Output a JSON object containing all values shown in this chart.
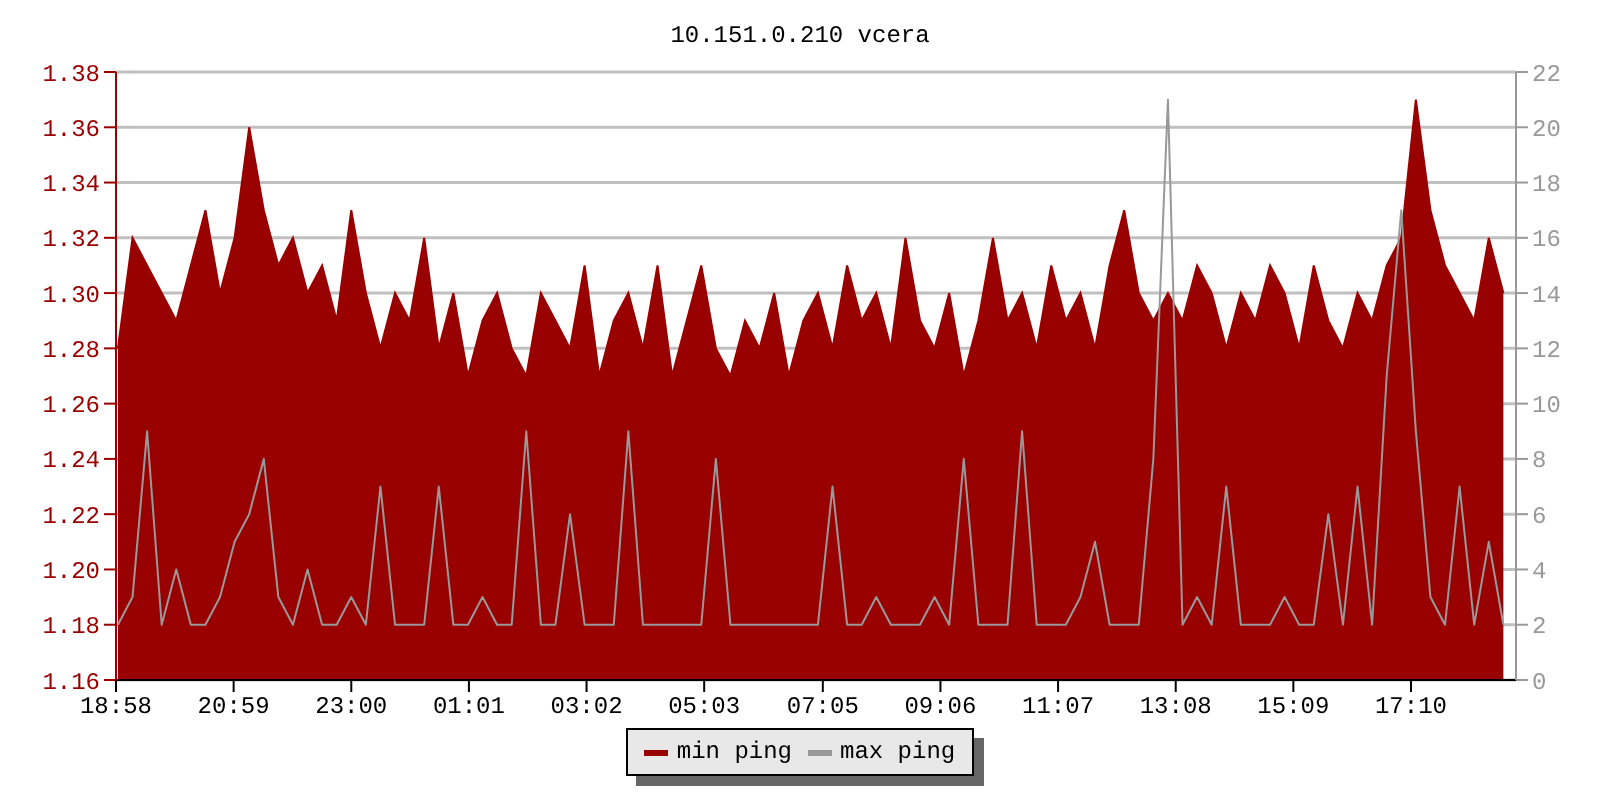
{
  "chart_data": {
    "type": "area",
    "title": "10.151.0.210 vcera",
    "x": [
      "--01-01T19:00",
      "--01-01T19:15",
      "--01-01T19:30",
      "--01-01T19:45",
      "--01-01T20:00",
      "--01-01T20:15",
      "--01-01T20:30",
      "--01-01T20:45",
      "--01-01T21:00",
      "--01-01T21:15",
      "--01-01T21:30",
      "--01-01T21:45",
      "--01-01T22:00",
      "--01-01T22:15",
      "--01-01T22:30",
      "--01-01T22:45",
      "--01-01T23:00",
      "--01-01T23:15",
      "--01-01T23:30",
      "--01-01T23:45",
      "--01-02T00:00",
      "--01-02T00:15",
      "--01-02T00:30",
      "--01-02T00:45",
      "--01-02T01:00",
      "--01-02T01:15",
      "--01-02T01:30",
      "--01-02T01:45",
      "--01-02T02:00",
      "--01-02T02:15",
      "--01-02T02:30",
      "--01-02T02:45",
      "--01-02T03:00",
      "--01-02T03:15",
      "--01-02T03:30",
      "--01-02T03:45",
      "--01-02T04:00",
      "--01-02T04:15",
      "--01-02T04:30",
      "--01-02T04:45",
      "--01-02T05:00",
      "--01-02T05:15",
      "--01-02T05:30",
      "--01-02T05:45",
      "--01-02T06:00",
      "--01-02T06:15",
      "--01-02T06:30",
      "--01-02T06:45",
      "--01-02T07:00",
      "--01-02T07:15",
      "--01-02T07:30",
      "--01-02T07:45",
      "--01-02T08:00",
      "--01-02T08:15",
      "--01-02T08:30",
      "--01-02T08:45",
      "--01-02T09:00",
      "--01-02T09:15",
      "--01-02T09:30",
      "--01-02T09:45",
      "--01-02T10:00",
      "--01-02T10:15",
      "--01-02T10:30",
      "--01-02T10:45",
      "--01-02T11:00",
      "--01-02T11:15",
      "--01-02T11:30",
      "--01-02T11:45",
      "--01-02T12:00",
      "--01-02T12:15",
      "--01-02T12:30",
      "--01-02T12:45",
      "--01-02T13:00",
      "--01-02T13:15",
      "--01-02T13:30",
      "--01-02T13:45",
      "--01-02T14:00",
      "--01-02T14:15",
      "--01-02T14:30",
      "--01-02T14:45",
      "--01-02T15:00",
      "--01-02T15:15",
      "--01-02T15:30",
      "--01-02T15:45",
      "--01-02T16:00",
      "--01-02T16:15",
      "--01-02T16:30",
      "--01-02T16:45",
      "--01-02T17:00",
      "--01-02T17:15",
      "--01-02T17:30",
      "--01-02T17:45",
      "--01-02T18:00",
      "--01-02T18:15",
      "--01-02T18:30",
      "--01-02T18:45"
    ],
    "series": [
      {
        "name": "min ping",
        "color": "#990000",
        "values": [
          1.28,
          1.32,
          1.31,
          1.3,
          1.29,
          1.31,
          1.33,
          1.3,
          1.32,
          1.36,
          1.33,
          1.31,
          1.32,
          1.3,
          1.31,
          1.29,
          1.33,
          1.3,
          1.28,
          1.3,
          1.29,
          1.32,
          1.28,
          1.3,
          1.27,
          1.29,
          1.3,
          1.28,
          1.27,
          1.3,
          1.29,
          1.28,
          1.31,
          1.27,
          1.29,
          1.3,
          1.28,
          1.31,
          1.27,
          1.29,
          1.31,
          1.28,
          1.27,
          1.29,
          1.28,
          1.3,
          1.27,
          1.29,
          1.3,
          1.28,
          1.31,
          1.29,
          1.3,
          1.28,
          1.32,
          1.29,
          1.28,
          1.3,
          1.27,
          1.29,
          1.32,
          1.29,
          1.3,
          1.28,
          1.31,
          1.29,
          1.3,
          1.28,
          1.31,
          1.33,
          1.3,
          1.29,
          1.3,
          1.29,
          1.31,
          1.3,
          1.28,
          1.3,
          1.29,
          1.31,
          1.3,
          1.28,
          1.31,
          1.29,
          1.28,
          1.3,
          1.29,
          1.31,
          1.32,
          1.37,
          1.33,
          1.31,
          1.3,
          1.29,
          1.32,
          1.3
        ]
      },
      {
        "name": "max ping",
        "type": "line",
        "axis": "y2",
        "color": "#999999",
        "values": [
          2,
          3,
          9,
          2,
          4,
          2,
          2,
          3,
          5,
          6,
          8,
          3,
          2,
          4,
          2,
          2,
          3,
          2,
          7,
          2,
          2,
          2,
          7,
          2,
          2,
          3,
          2,
          2,
          9,
          2,
          2,
          6,
          2,
          2,
          2,
          9,
          2,
          2,
          2,
          2,
          2,
          8,
          2,
          2,
          2,
          2,
          2,
          2,
          2,
          7,
          2,
          2,
          3,
          2,
          2,
          2,
          3,
          2,
          8,
          2,
          2,
          2,
          9,
          2,
          2,
          2,
          3,
          5,
          2,
          2,
          2,
          8,
          21,
          2,
          3,
          2,
          7,
          2,
          2,
          2,
          3,
          2,
          2,
          6,
          2,
          7,
          2,
          11,
          17,
          9,
          3,
          2,
          7,
          2,
          5,
          2
        ]
      }
    ],
    "xlim": [
      "--01-01T18:58",
      "--01-02T18:58"
    ],
    "xticks": [
      {
        "value": "--01-01T18:58",
        "label": "18:58"
      },
      {
        "value": "--01-01T20:59",
        "label": "20:59"
      },
      {
        "value": "--01-01T23:00",
        "label": "23:00"
      },
      {
        "value": "--01-02T01:01",
        "label": "01:01"
      },
      {
        "value": "--01-02T03:02",
        "label": "03:02"
      },
      {
        "value": "--01-02T05:03",
        "label": "05:03"
      },
      {
        "value": "--01-02T07:05",
        "label": "07:05"
      },
      {
        "value": "--01-02T09:06",
        "label": "09:06"
      },
      {
        "value": "--01-02T11:07",
        "label": "11:07"
      },
      {
        "value": "--01-02T13:08",
        "label": "13:08"
      },
      {
        "value": "--01-02T15:09",
        "label": "15:09"
      },
      {
        "value": "--01-02T17:10",
        "label": "17:10"
      }
    ],
    "ylim": [
      1.16,
      1.38
    ],
    "yticks": [
      {
        "value": 1.16,
        "label": "1.16"
      },
      {
        "value": 1.18,
        "label": "1.18"
      },
      {
        "value": 1.2,
        "label": "1.20"
      },
      {
        "value": 1.22,
        "label": "1.22"
      },
      {
        "value": 1.24,
        "label": "1.24"
      },
      {
        "value": 1.26,
        "label": "1.26"
      },
      {
        "value": 1.28,
        "label": "1.28"
      },
      {
        "value": 1.3,
        "label": "1.30"
      },
      {
        "value": 1.32,
        "label": "1.32"
      },
      {
        "value": 1.34,
        "label": "1.34"
      },
      {
        "value": 1.36,
        "label": "1.36"
      },
      {
        "value": 1.38,
        "label": "1.38"
      }
    ],
    "y2lim": [
      0,
      22
    ],
    "y2ticks": [
      0,
      2,
      4,
      6,
      8,
      10,
      12,
      14,
      16,
      18,
      20,
      22
    ],
    "grid": "y",
    "legend": "bottom"
  }
}
